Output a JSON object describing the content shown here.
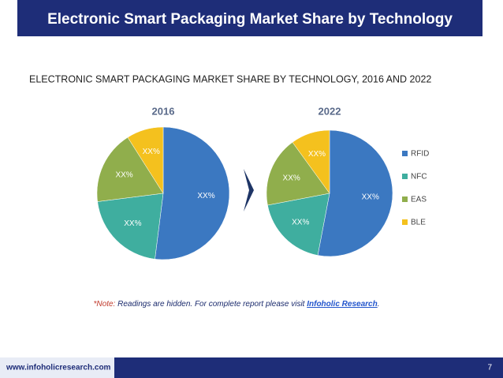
{
  "slide_title": "Electronic Smart Packaging Market Share by Technology",
  "chart_title": "ELECTRONIC SMART PACKAGING MARKET SHARE BY TECHNOLOGY, 2016 AND 2022",
  "chart_data": [
    {
      "type": "pie",
      "title": "2016",
      "categories": [
        "RFID",
        "NFC",
        "EAS",
        "BLE"
      ],
      "colors": [
        "#3b78c1",
        "#3fae9f",
        "#90ae4c",
        "#f4c11e"
      ],
      "values": [
        52,
        21,
        18,
        9
      ],
      "value_labels": [
        "XX%",
        "XX%",
        "XX%",
        "XX%"
      ]
    },
    {
      "type": "pie",
      "title": "2022",
      "categories": [
        "RFID",
        "NFC",
        "EAS",
        "BLE"
      ],
      "colors": [
        "#3b78c1",
        "#3fae9f",
        "#90ae4c",
        "#f4c11e"
      ],
      "values": [
        53,
        19,
        18,
        10
      ],
      "value_labels": [
        "XX%",
        "XX%",
        "XX%",
        "XX%"
      ]
    }
  ],
  "note": {
    "prefix": "*Note:",
    "text": "Readings are hidden. For complete report please visit",
    "link": "Infoholic Research",
    "suffix": "."
  },
  "footer": {
    "url": "www.infoholicresearch.com",
    "page": 7
  }
}
